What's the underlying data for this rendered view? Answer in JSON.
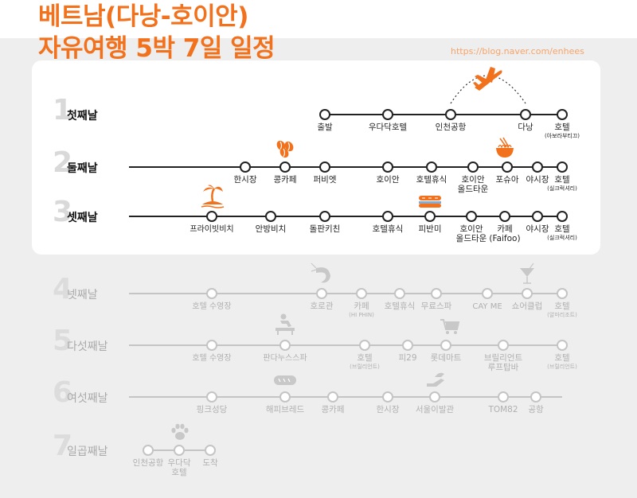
{
  "title_line1": "베트남(다낭-호이안)",
  "title_line2": "자유여행 5박 7일 일정",
  "blog_url": "https://blog.naver.com/enhees",
  "colors": {
    "accent": "#f2711c",
    "active_text": "#222222",
    "faded": "#c4c4c4",
    "faded_text": "#b0b0b0"
  },
  "days": [
    {
      "num": "1",
      "label": "첫째날",
      "active": true,
      "icons": [
        "airplane-icon"
      ],
      "stops": [
        {
          "name": "출발"
        },
        {
          "name": "우다닥호텔"
        },
        {
          "name": "인천공항"
        },
        {
          "name": "다낭"
        },
        {
          "name": "호텔",
          "sub": "(아보라부티끄)"
        }
      ]
    },
    {
      "num": "2",
      "label": "둘째날",
      "active": true,
      "icons": [
        "coffee-beans-icon",
        "noodle-bowl-icon"
      ],
      "stops": [
        {
          "name": "한시장"
        },
        {
          "name": "콩카페"
        },
        {
          "name": "퍼비엣"
        },
        {
          "name": "호이안"
        },
        {
          "name": "호텔휴식"
        },
        {
          "name": "호이안",
          "name2": "올드타운"
        },
        {
          "name": "포슈아"
        },
        {
          "name": "야시장"
        },
        {
          "name": "호텔",
          "sub": "(실크럭셔리)"
        }
      ]
    },
    {
      "num": "3",
      "label": "셋째날",
      "active": true,
      "icons": [
        "palm-island-icon",
        "sandwich-icon"
      ],
      "stops": [
        {
          "name": "프라이빗비치"
        },
        {
          "name": "안방비치"
        },
        {
          "name": "돌판키친"
        },
        {
          "name": "호텔휴식"
        },
        {
          "name": "피반미"
        },
        {
          "name": "호이안",
          "name2": "올드타운"
        },
        {
          "name": "카페",
          "name2": "(Faifoo)"
        },
        {
          "name": "야시장"
        },
        {
          "name": "호텔",
          "sub": "(실크럭셔리)"
        }
      ]
    },
    {
      "num": "4",
      "label": "넷째날",
      "active": false,
      "icons": [
        "shrimp-icon",
        "cocktail-icon"
      ],
      "stops": [
        {
          "name": "호텔 수영장"
        },
        {
          "name": "호로관"
        },
        {
          "name": "카페",
          "sub": "(HI PHIN)"
        },
        {
          "name": "호텔휴식"
        },
        {
          "name": "무료스파"
        },
        {
          "name": "CAY ME"
        },
        {
          "name": "쇼어클럽"
        },
        {
          "name": "호텔",
          "sub": "(알마리조트)"
        }
      ]
    },
    {
      "num": "5",
      "label": "다섯째날",
      "active": false,
      "icons": [
        "massage-icon",
        "cart-icon"
      ],
      "stops": [
        {
          "name": "호텔 수영장"
        },
        {
          "name": "판다누스스파"
        },
        {
          "name": "호텔",
          "sub": "(브릴리언트)"
        },
        {
          "name": "피29"
        },
        {
          "name": "롯데마트"
        },
        {
          "name": "브릴리언트",
          "name2": "루프탑바"
        },
        {
          "name": "호텔",
          "sub": "(브릴리언트)"
        }
      ]
    },
    {
      "num": "6",
      "label": "여섯째날",
      "active": false,
      "icons": [
        "bread-icon",
        "hand-food-icon"
      ],
      "stops": [
        {
          "name": "핑크성당"
        },
        {
          "name": "해피브레드"
        },
        {
          "name": "콩카페"
        },
        {
          "name": "한시장"
        },
        {
          "name": "서울이발관"
        },
        {
          "name": "TOM82"
        },
        {
          "name": "공항"
        }
      ]
    },
    {
      "num": "7",
      "label": "일곱째날",
      "active": false,
      "icons": [
        "paw-icon"
      ],
      "stops": [
        {
          "name": "인천공항"
        },
        {
          "name": "우다닥",
          "name2": "호텔"
        },
        {
          "name": "도착"
        }
      ]
    }
  ]
}
